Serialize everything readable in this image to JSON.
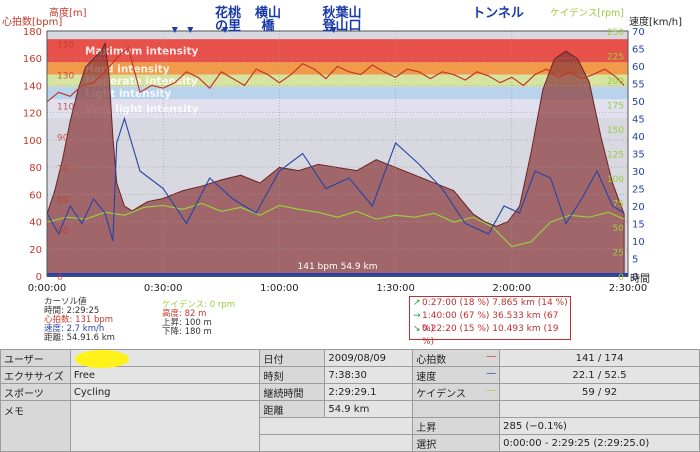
{
  "chart_data": {
    "type": "area",
    "x_ticks": [
      "0:00:00",
      "0:30:00",
      "1:00:00",
      "1:30:00",
      "2:00:00",
      "2:30:00"
    ],
    "x_unit": "時間",
    "xlim": [
      "0:00:00",
      "2:30:00"
    ],
    "left_axis_label_outer": "心拍数[bpm]",
    "left_axis_label_inner": "高度[m]",
    "left_ticks_outer": [
      0,
      20,
      40,
      60,
      80,
      100,
      120,
      140,
      160,
      180
    ],
    "left_ticks_inner": [
      0,
      30,
      50,
      70,
      90,
      110,
      130,
      150
    ],
    "right_axis_label_outer": "速度[km/h]",
    "right_axis_label_inner": "ケイデンス[rpm]",
    "right_ticks_outer": [
      0,
      5,
      10,
      15,
      20,
      25,
      30,
      35,
      40,
      45,
      50,
      55,
      60,
      65,
      70
    ],
    "right_ticks_inner": [
      0,
      25,
      50,
      75,
      100,
      125,
      150,
      175,
      200,
      225,
      250
    ],
    "zones": [
      {
        "label": "Maximum intensity",
        "from": 157,
        "to": 174,
        "color": "#e8504a"
      },
      {
        "label": "Hard intensity",
        "from": 148,
        "to": 157,
        "color": "#f09a4a"
      },
      {
        "label": "Moderate intensity",
        "from": 139,
        "to": 148,
        "color": "#d7e3a0"
      },
      {
        "label": "Light intensity",
        "from": 130,
        "to": 139,
        "color": "#b9d3ec"
      },
      {
        "label": "Very light intensity",
        "from": 116,
        "to": 130,
        "color": "#e0e0ee"
      }
    ],
    "annotations": [
      "花桃の里",
      "横山橋",
      "秋葉山登山口",
      "トンネル"
    ],
    "annotation_times_min": [
      33,
      37,
      46,
      74
    ],
    "center_label": "141 bpm 54.9 km",
    "series": [
      {
        "name": "心拍数",
        "unit": "bpm",
        "color": "#c0392b",
        "x_min": [
          0,
          3,
          6,
          9,
          12,
          15,
          18,
          21,
          24,
          27,
          30,
          33,
          36,
          39,
          42,
          45,
          48,
          51,
          54,
          57,
          60,
          63,
          66,
          69,
          72,
          75,
          78,
          81,
          84,
          87,
          90,
          93,
          96,
          99,
          102,
          105,
          108,
          111,
          114,
          117,
          120,
          123,
          126,
          129,
          132,
          135,
          138,
          141,
          144,
          147,
          149
        ],
        "values": [
          128,
          135,
          132,
          140,
          142,
          150,
          160,
          168,
          135,
          140,
          138,
          142,
          150,
          146,
          138,
          150,
          145,
          140,
          152,
          148,
          142,
          148,
          156,
          152,
          145,
          154,
          150,
          148,
          155,
          150,
          146,
          152,
          150,
          145,
          150,
          148,
          144,
          150,
          147,
          142,
          146,
          140,
          148,
          152,
          146,
          150,
          145,
          148,
          152,
          146,
          140
        ]
      },
      {
        "name": "高度",
        "unit": "m",
        "color": "#7a2e2e",
        "x_min": [
          0,
          2,
          4,
          6,
          8,
          10,
          12,
          14,
          15,
          16,
          17,
          18,
          20,
          22,
          24,
          26,
          30,
          35,
          40,
          45,
          50,
          55,
          60,
          65,
          70,
          75,
          80,
          85,
          90,
          95,
          100,
          105,
          110,
          113,
          116,
          119,
          122,
          125,
          128,
          131,
          134,
          137,
          140,
          143,
          146,
          149
        ],
        "values": [
          40,
          55,
          75,
          100,
          120,
          135,
          140,
          145,
          150,
          130,
          90,
          60,
          45,
          42,
          45,
          48,
          50,
          55,
          58,
          62,
          65,
          60,
          70,
          68,
          72,
          70,
          68,
          75,
          70,
          65,
          60,
          55,
          40,
          35,
          32,
          35,
          45,
          80,
          120,
          140,
          145,
          140,
          125,
          90,
          60,
          40
        ]
      },
      {
        "name": "速度",
        "unit": "km/h",
        "color": "#2444a8",
        "x_min": [
          0,
          3,
          6,
          9,
          12,
          15,
          17,
          18,
          20,
          24,
          30,
          36,
          42,
          48,
          54,
          60,
          66,
          72,
          78,
          84,
          90,
          96,
          102,
          108,
          114,
          118,
          122,
          126,
          130,
          134,
          138,
          142,
          146,
          149
        ],
        "values": [
          18,
          12,
          20,
          15,
          22,
          18,
          10,
          38,
          45,
          30,
          25,
          15,
          28,
          22,
          18,
          30,
          35,
          25,
          28,
          20,
          38,
          32,
          25,
          15,
          12,
          20,
          18,
          30,
          28,
          15,
          22,
          30,
          20,
          18
        ]
      },
      {
        "name": "ケイデンス",
        "unit": "rpm",
        "color": "#9ccc3d",
        "x_min": [
          0,
          5,
          10,
          15,
          20,
          25,
          30,
          35,
          40,
          45,
          50,
          55,
          60,
          65,
          70,
          75,
          80,
          85,
          90,
          95,
          100,
          105,
          110,
          115,
          120,
          125,
          130,
          135,
          140,
          145,
          149
        ],
        "values": [
          55,
          60,
          58,
          65,
          62,
          70,
          72,
          68,
          74,
          66,
          70,
          62,
          72,
          68,
          65,
          60,
          66,
          58,
          62,
          60,
          64,
          55,
          60,
          50,
          30,
          35,
          55,
          62,
          60,
          65,
          58
        ]
      }
    ]
  },
  "cursor": {
    "title": "カーソル値",
    "time": "時間: 2:29:25",
    "hr": "心拍数: 131 bpm",
    "speed": "速度: 2.7 km/h",
    "distance": "距離: 54.91.6 km",
    "cadence": "ケイデンス: 0 rpm",
    "altitude": "高度: 82 m",
    "ascent": "上昇: 100 m",
    "descent": "下降: 180 m"
  },
  "zones_summary": [
    {
      "arrow": "↗",
      "text": "0:27:00  (18 %)  7.865 km  (14 %)",
      "color": "#2a9a3a"
    },
    {
      "arrow": "→",
      "text": "1:40:00  (67 %)  36.533 km  (67 %)",
      "color": "#2a9a3a"
    },
    {
      "arrow": "↘",
      "text": "0:22:20  (15 %)  10.493 km  (19 %)",
      "color": "#2a9a3a"
    }
  ],
  "info": {
    "user_label": "ユーザー",
    "user_value": "",
    "exercise_label": "エクササイズ",
    "exercise_value": "Free",
    "sport_label": "スポーツ",
    "sport_value": "Cycling",
    "memo_label": "メモ",
    "date_label": "日付",
    "date_value": "2009/08/09",
    "time_label": "時刻",
    "time_value": "7:38:30",
    "duration_label": "継続時間",
    "duration_value": "2:29:29.1",
    "distance_label": "距離",
    "distance_value": "54.9 km",
    "hr_label": "心拍数",
    "hr_value": "141 / 174",
    "speed_label": "速度",
    "speed_value": "22.1 / 52.5",
    "cadence_label": "ケイデンス",
    "cadence_value": "59 / 92",
    "ascent_label": "上昇",
    "ascent_value": "285 (−0.1%)",
    "selection_label": "選択",
    "selection_value": "0:00:00 - 2:29:25 (2:29:25.0)"
  },
  "colors": {
    "hr": "#c0392b",
    "speed": "#2444a8",
    "cadence": "#9ccc3d",
    "altitude": "#7a2e2e"
  }
}
